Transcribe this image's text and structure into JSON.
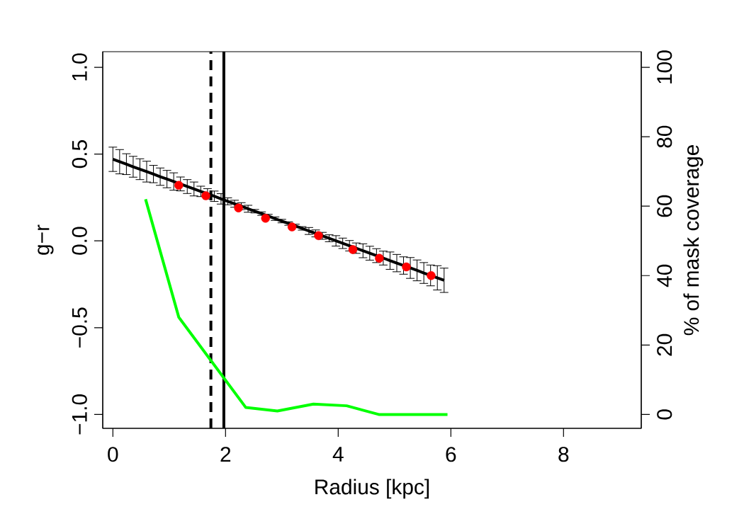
{
  "chart_data": {
    "type": "line",
    "xlabel": "Radius [kpc]",
    "ylabel": "g−r",
    "y2label": "% of mask coverage",
    "xlim": [
      -0.18,
      9.38
    ],
    "xticks": [
      0,
      2,
      4,
      6,
      8
    ],
    "ylim": [
      -1.08,
      1.09
    ],
    "yticks": [
      {
        "value": -1.0,
        "label": "−1.0"
      },
      {
        "value": -0.5,
        "label": "−0.5"
      },
      {
        "value": 0.0,
        "label": "0.0"
      },
      {
        "value": 0.5,
        "label": "0.5"
      },
      {
        "value": 1.0,
        "label": "1.0"
      }
    ],
    "y2lim": [
      -4,
      104.5
    ],
    "y2ticks": [
      0,
      20,
      40,
      60,
      80,
      100
    ],
    "series": [
      {
        "color": "#000000",
        "x": [
          0,
          0.12,
          0.24,
          0.36,
          0.48,
          0.6,
          0.72,
          0.84,
          0.96,
          1.08,
          1.2,
          1.32,
          1.44,
          1.56,
          1.68,
          1.8,
          1.92,
          2.04,
          2.16,
          2.28,
          2.4,
          2.52,
          2.64,
          2.76,
          2.88,
          3.0,
          3.12,
          3.24,
          3.36,
          3.48,
          3.6,
          3.72,
          3.84,
          3.96,
          4.08,
          4.2,
          4.32,
          4.44,
          4.56,
          4.68,
          4.8,
          4.92,
          5.04,
          5.16,
          5.28,
          5.4,
          5.52,
          5.64,
          5.76,
          5.88
        ],
        "values": [
          0.47,
          0.456,
          0.442,
          0.427,
          0.413,
          0.399,
          0.385,
          0.37,
          0.356,
          0.342,
          0.328,
          0.313,
          0.299,
          0.285,
          0.271,
          0.257,
          0.242,
          0.228,
          0.214,
          0.2,
          0.185,
          0.171,
          0.157,
          0.143,
          0.128,
          0.114,
          0.1,
          0.086,
          0.072,
          0.057,
          0.043,
          0.029,
          0.015,
          0.0,
          -0.014,
          -0.028,
          -0.042,
          -0.057,
          -0.071,
          -0.085,
          -0.099,
          -0.114,
          -0.128,
          -0.142,
          -0.156,
          -0.17,
          -0.185,
          -0.199,
          -0.213,
          -0.227
        ],
        "errors": [
          0.07,
          0.07,
          0.06,
          0.06,
          0.06,
          0.06,
          0.05,
          0.05,
          0.05,
          0.05,
          0.04,
          0.04,
          0.04,
          0.03,
          0.03,
          0.03,
          0.03,
          0.02,
          0.02,
          0.02,
          0.02,
          0.01,
          0.01,
          0.01,
          0.01,
          0.01,
          0.01,
          0.01,
          0.01,
          0.02,
          0.02,
          0.02,
          0.02,
          0.03,
          0.03,
          0.03,
          0.03,
          0.04,
          0.04,
          0.04,
          0.04,
          0.05,
          0.05,
          0.05,
          0.06,
          0.06,
          0.06,
          0.06,
          0.07,
          0.07
        ]
      },
      {
        "type": "scatter",
        "color": "#ff0000",
        "marker": "circle",
        "x": [
          1.17,
          1.65,
          2.23,
          2.71,
          3.18,
          3.65,
          4.26,
          4.73,
          5.21,
          5.65
        ],
        "values": [
          0.32,
          0.26,
          0.19,
          0.13,
          0.08,
          0.03,
          -0.05,
          -0.1,
          -0.15,
          -0.2
        ]
      },
      {
        "color": "#00ff00",
        "axis": "y2",
        "x": [
          0.58,
          1.17,
          2.36,
          2.92,
          3.56,
          4.15,
          4.72,
          5.94
        ],
        "values": [
          62,
          28,
          2,
          1,
          3,
          2.5,
          0,
          0
        ]
      }
    ],
    "ref_lines": [
      {
        "axis": "x",
        "value": 1.74,
        "color": "#000000",
        "line_style": "dashed"
      },
      {
        "axis": "x",
        "value": 1.97,
        "color": "#000000",
        "line_style": "solid"
      }
    ]
  }
}
